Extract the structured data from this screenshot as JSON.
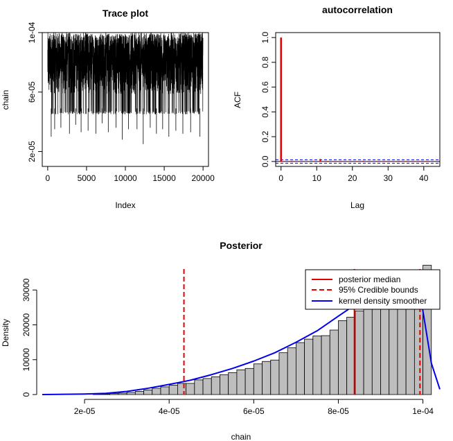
{
  "chart_data": [
    {
      "id": "trace",
      "type": "line",
      "title": "Trace plot",
      "xlabel": "Index",
      "ylabel": "chain",
      "xlim": [
        -700,
        20700
      ],
      "ylim": [
        1e-05,
        0.0001
      ],
      "x_ticks": [
        0,
        5000,
        10000,
        15000,
        20000
      ],
      "x_tick_labels": [
        "0",
        "5000",
        "10000",
        "15000",
        "20000"
      ],
      "y_ticks": [
        2e-05,
        6e-05,
        0.0001
      ],
      "y_tick_labels": [
        "2e-05",
        "6e-05",
        "1e-04"
      ],
      "n_samples": 20000,
      "band": {
        "lower": 4.5e-05,
        "upper": 0.0001
      },
      "spikes": [
        {
          "x": 450,
          "y": 3e-05
        },
        {
          "x": 900,
          "y": 3.5e-05
        },
        {
          "x": 1700,
          "y": 3.6e-05
        },
        {
          "x": 2800,
          "y": 3.2e-05
        },
        {
          "x": 3600,
          "y": 3.8e-05
        },
        {
          "x": 4300,
          "y": 3.3e-05
        },
        {
          "x": 5200,
          "y": 3.4e-05
        },
        {
          "x": 6200,
          "y": 3.2e-05
        },
        {
          "x": 7000,
          "y": 3.9e-05
        },
        {
          "x": 7800,
          "y": 3.3e-05
        },
        {
          "x": 8800,
          "y": 3.6e-05
        },
        {
          "x": 9600,
          "y": 2.8e-05
        },
        {
          "x": 10400,
          "y": 3.5e-05
        },
        {
          "x": 11500,
          "y": 3.5e-05
        },
        {
          "x": 12300,
          "y": 2.5e-05
        },
        {
          "x": 13200,
          "y": 3.6e-05
        },
        {
          "x": 14000,
          "y": 3.2e-05
        },
        {
          "x": 14800,
          "y": 3.5e-05
        },
        {
          "x": 15600,
          "y": 3e-05
        },
        {
          "x": 16500,
          "y": 3.4e-05
        },
        {
          "x": 17400,
          "y": 3.2e-05
        },
        {
          "x": 18400,
          "y": 3.3e-05
        },
        {
          "x": 19600,
          "y": 3e-05
        }
      ]
    },
    {
      "id": "acf",
      "type": "bar",
      "title": "autocorrelation",
      "xlabel": "Lag",
      "ylabel": "ACF",
      "xlim": [
        -1.5,
        44.5
      ],
      "ylim": [
        -0.04,
        1.04
      ],
      "x_ticks": [
        0,
        10,
        20,
        30,
        40
      ],
      "x_tick_labels": [
        "0",
        "10",
        "20",
        "30",
        "40"
      ],
      "y_ticks": [
        0,
        0.2,
        0.4,
        0.6,
        0.8,
        1.0
      ],
      "y_tick_labels": [
        "0.0",
        "0.2",
        "0.4",
        "0.6",
        "0.8",
        "1.0"
      ],
      "bar_color": "#e00000",
      "ci_color": "#0000ff",
      "ci_bound": 0.014,
      "lags": [
        0,
        1,
        2,
        3,
        4,
        5,
        6,
        7,
        8,
        9,
        10,
        11,
        12,
        13,
        14,
        15,
        16,
        17,
        18,
        19,
        20,
        21,
        22,
        23,
        24,
        25,
        26,
        27,
        28,
        29,
        30,
        31,
        32,
        33,
        34,
        35,
        36,
        37,
        38,
        39,
        40,
        41,
        42,
        43,
        44
      ],
      "values": [
        1.0,
        0.003,
        -0.004,
        0.004,
        -0.003,
        0.003,
        -0.004,
        0.002,
        -0.003,
        0.003,
        -0.004,
        0.02,
        -0.003,
        0.004,
        -0.003,
        0.003,
        -0.004,
        0.003,
        -0.003,
        0.002,
        -0.004,
        0.003,
        -0.003,
        0.004,
        -0.003,
        0.003,
        -0.004,
        0.003,
        -0.003,
        0.003,
        -0.004,
        0.003,
        -0.003,
        0.004,
        -0.003,
        0.003,
        -0.004,
        0.003,
        -0.003,
        0.003,
        -0.004,
        0.003,
        -0.003,
        0.003,
        -0.004
      ]
    },
    {
      "id": "posterior",
      "type": "bar",
      "title": "Posterior",
      "xlabel": "chain",
      "ylabel": "Density",
      "xlim": [
        1e-05,
        0.000104
      ],
      "ylim": [
        0,
        38000
      ],
      "x_ticks": [
        2e-05,
        4e-05,
        6e-05,
        8e-05,
        0.0001
      ],
      "x_tick_labels": [
        "2e-05",
        "4e-05",
        "6e-05",
        "8e-05",
        "1e-04"
      ],
      "y_ticks": [
        0,
        10000,
        20000,
        30000
      ],
      "y_tick_labels": [
        "0",
        "10000",
        "20000",
        "30000"
      ],
      "bin_start": 1.4e-05,
      "bin_width": 2e-06,
      "bin_counts": [
        0,
        0,
        0,
        0,
        100,
        150,
        300,
        400,
        600,
        900,
        1300,
        1800,
        2200,
        2700,
        3200,
        3200,
        4200,
        4600,
        5100,
        5700,
        6300,
        7100,
        7500,
        8800,
        9500,
        9900,
        12000,
        13400,
        14900,
        15900,
        16800,
        16900,
        18500,
        21200,
        22200,
        24000,
        26500,
        28500,
        30500,
        31500,
        32500,
        33800,
        35800,
        37100
      ],
      "median": 8.38e-05,
      "credible_lower": 4.35e-05,
      "credible_upper": 9.93e-05,
      "kde_x": [
        1e-05,
        2e-05,
        2.5e-05,
        3e-05,
        3.5e-05,
        4e-05,
        4.5e-05,
        5e-05,
        5.5e-05,
        6e-05,
        6.5e-05,
        7e-05,
        7.5e-05,
        8e-05,
        8.5e-05,
        9e-05,
        9.3e-05,
        9.6e-05,
        9.75e-05,
        9.9e-05,
        0.0001,
        0.000102,
        0.000104
      ],
      "kde_y": [
        0,
        150,
        350,
        900,
        1800,
        2900,
        4100,
        5700,
        7500,
        9600,
        12000,
        15000,
        18300,
        22500,
        26600,
        30300,
        32300,
        33600,
        33500,
        30800,
        24000,
        9000,
        1500
      ],
      "hist_fill": "#bebebe",
      "median_color": "#e00000",
      "kde_color": "#0000ee",
      "legend": {
        "position": "top-right",
        "entries": [
          {
            "label": "posterior median",
            "color": "#e00000",
            "style": "solid"
          },
          {
            "label": "95% Credible bounds",
            "color": "#e00000",
            "style": "dashed"
          },
          {
            "label": "kernel density smoother",
            "color": "#0000ee",
            "style": "solid"
          }
        ]
      }
    }
  ]
}
